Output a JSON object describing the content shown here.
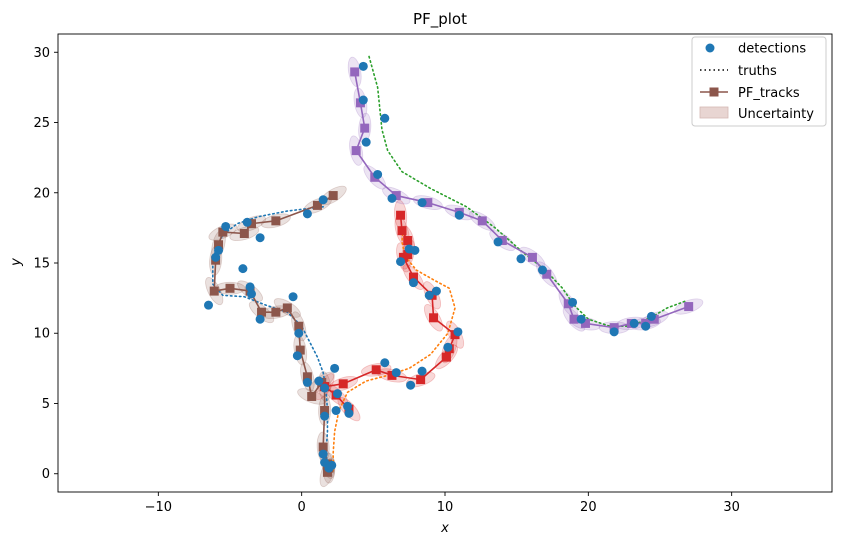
{
  "chart_data": {
    "type": "scatter",
    "title": "PF_plot",
    "xlabel": "x",
    "ylabel": "y",
    "xlim": [
      -17,
      37
    ],
    "ylim": [
      -1.3,
      31.3
    ],
    "xticks": [
      -10,
      0,
      10,
      20,
      30
    ],
    "yticks": [
      0,
      5,
      10,
      15,
      20,
      25,
      30
    ],
    "grid": false,
    "legend_position": "top-right",
    "legend": [
      "detections",
      "truths",
      "PF_tracks",
      "Uncertainty"
    ],
    "colors": {
      "detections": "#1f77b4",
      "legend_track": "#8c564b",
      "uncertainty_legend": "#e8d5d2",
      "track_brown": "#8c564b",
      "track_red": "#d62728",
      "track_purple": "#9467bd",
      "truth_blue": "#1f77b4",
      "truth_orange": "#ff7f0e",
      "truth_green": "#2ca02c"
    },
    "truths": [
      {
        "color": "truth_blue",
        "points": [
          [
            1.5,
            19.0
          ],
          [
            -1,
            18.7
          ],
          [
            -3,
            18.3
          ],
          [
            -4.5,
            17.8
          ],
          [
            -5.5,
            17.0
          ],
          [
            -6,
            16.0
          ],
          [
            -6.2,
            15.0
          ],
          [
            -6.2,
            13.5
          ],
          [
            -5.5,
            12.7
          ],
          [
            -4,
            12.6
          ],
          [
            -2.5,
            12.0
          ],
          [
            -1,
            11.5
          ],
          [
            0,
            10.5
          ],
          [
            0.6,
            9.3
          ],
          [
            1.1,
            8.3
          ],
          [
            1.5,
            7.2
          ],
          [
            1.7,
            6.0
          ],
          [
            1.8,
            4.5
          ],
          [
            1.8,
            3.0
          ],
          [
            1.7,
            1.5
          ],
          [
            1.8,
            0.5
          ],
          [
            1.9,
            0.0
          ]
        ]
      },
      {
        "color": "truth_orange",
        "points": [
          [
            2.2,
            0.2
          ],
          [
            2.2,
            1.5
          ],
          [
            2.3,
            3.0
          ],
          [
            2.6,
            4.5
          ],
          [
            3.2,
            5.8
          ],
          [
            4.5,
            6.6
          ],
          [
            6.0,
            7.0
          ],
          [
            7.5,
            7.5
          ],
          [
            9.0,
            8.5
          ],
          [
            10.2,
            10.0
          ],
          [
            10.7,
            11.8
          ],
          [
            10.3,
            13.2
          ],
          [
            9.2,
            13.8
          ],
          [
            8.0,
            14.5
          ],
          [
            7.2,
            15.5
          ],
          [
            7.0,
            16.5
          ],
          [
            7.1,
            17.5
          ]
        ]
      },
      {
        "color": "truth_green",
        "points": [
          [
            4.7,
            29.7
          ],
          [
            5.3,
            27.5
          ],
          [
            5.6,
            24.5
          ],
          [
            6.0,
            23.0
          ],
          [
            7.0,
            21.5
          ],
          [
            9.0,
            20.3
          ],
          [
            11.5,
            19.0
          ],
          [
            13.5,
            17.5
          ],
          [
            15.5,
            15.7
          ],
          [
            17.0,
            14.5
          ],
          [
            18.2,
            13.2
          ],
          [
            19.0,
            12.0
          ],
          [
            20.0,
            11.0
          ],
          [
            21.5,
            10.5
          ],
          [
            23,
            10.5
          ],
          [
            24.5,
            11.2
          ],
          [
            25.5,
            11.8
          ],
          [
            26.8,
            12.3
          ]
        ]
      }
    ],
    "tracks": [
      {
        "color": "track_brown",
        "points": [
          [
            1.8,
            0.1
          ],
          [
            1.9,
            0.4
          ],
          [
            1.8,
            0.7
          ],
          [
            1.5,
            1.9
          ],
          [
            1.6,
            4.5
          ],
          [
            1.6,
            6.2
          ],
          [
            1.4,
            6.5
          ],
          [
            0.7,
            5.5
          ],
          [
            0.4,
            6.9
          ],
          [
            -0.1,
            8.8
          ],
          [
            -0.2,
            10.5
          ],
          [
            -1,
            11.8
          ],
          [
            -1.8,
            11.5
          ],
          [
            -2.8,
            11.5
          ],
          [
            -3.6,
            13.0
          ],
          [
            -5,
            13.2
          ],
          [
            -6.1,
            13.0
          ],
          [
            -6,
            15.2
          ],
          [
            -5.8,
            16.3
          ],
          [
            -5.5,
            17.2
          ],
          [
            -4,
            17.1
          ],
          [
            -3.5,
            17.8
          ],
          [
            -1.8,
            18.0
          ],
          [
            1.1,
            19.1
          ],
          [
            2.2,
            19.8
          ]
        ]
      },
      {
        "color": "track_red",
        "points": [
          [
            3.3,
            4.6
          ],
          [
            2.4,
            5.6
          ],
          [
            1.6,
            6.2
          ],
          [
            2.9,
            6.4
          ],
          [
            5.2,
            7.4
          ],
          [
            6.3,
            7.0
          ],
          [
            8.3,
            6.7
          ],
          [
            10.1,
            8.3
          ],
          [
            10.3,
            8.9
          ],
          [
            10.7,
            9.9
          ],
          [
            9.2,
            11.1
          ],
          [
            9.1,
            12.7
          ],
          [
            7.8,
            14.0
          ],
          [
            7.1,
            15.4
          ],
          [
            7.4,
            15.6
          ],
          [
            7.4,
            16.6
          ],
          [
            7.0,
            17.3
          ],
          [
            6.9,
            18.4
          ]
        ]
      },
      {
        "color": "track_purple",
        "points": [
          [
            3.7,
            28.6
          ],
          [
            4.1,
            26.4
          ],
          [
            4.4,
            24.6
          ],
          [
            3.8,
            23.0
          ],
          [
            5.1,
            21.1
          ],
          [
            6.6,
            19.8
          ],
          [
            8.8,
            19.3
          ],
          [
            11.0,
            18.6
          ],
          [
            12.6,
            18.0
          ],
          [
            14.0,
            16.6
          ],
          [
            16.1,
            15.4
          ],
          [
            17.1,
            14.2
          ],
          [
            18.6,
            12.1
          ],
          [
            19.0,
            11.0
          ],
          [
            19.8,
            10.7
          ],
          [
            21.8,
            10.4
          ],
          [
            23.0,
            10.7
          ],
          [
            24.0,
            10.7
          ],
          [
            24.6,
            11.0
          ],
          [
            27.0,
            11.9
          ]
        ]
      }
    ],
    "detections": [
      [
        1.6,
        0.8
      ],
      [
        2.1,
        0.6
      ],
      [
        1.9,
        0.4
      ],
      [
        1.5,
        1.4
      ],
      [
        1.6,
        4.1
      ],
      [
        2.4,
        4.5
      ],
      [
        3.3,
        4.3
      ],
      [
        2.5,
        5.7
      ],
      [
        1.6,
        6.1
      ],
      [
        1.2,
        6.6
      ],
      [
        0.4,
        6.5
      ],
      [
        2.3,
        7.5
      ],
      [
        -0.3,
        8.4
      ],
      [
        -0.2,
        10.0
      ],
      [
        -0.6,
        12.6
      ],
      [
        -2.9,
        11.0
      ],
      [
        -3.5,
        12.8
      ],
      [
        -3.6,
        13.3
      ],
      [
        -4.1,
        14.6
      ],
      [
        -6.5,
        12.0
      ],
      [
        -6.0,
        15.4
      ],
      [
        -5.8,
        15.9
      ],
      [
        -5.3,
        17.6
      ],
      [
        -3.8,
        17.9
      ],
      [
        -2.9,
        16.8
      ],
      [
        0.4,
        18.5
      ],
      [
        1.5,
        19.5
      ],
      [
        3.2,
        4.8
      ],
      [
        5.8,
        7.9
      ],
      [
        7.6,
        6.3
      ],
      [
        6.6,
        7.2
      ],
      [
        8.4,
        7.3
      ],
      [
        10.2,
        9.0
      ],
      [
        10.9,
        10.1
      ],
      [
        9.4,
        13.0
      ],
      [
        7.8,
        13.6
      ],
      [
        6.9,
        15.1
      ],
      [
        7.5,
        16.0
      ],
      [
        7.9,
        15.9
      ],
      [
        8.9,
        12.7
      ],
      [
        4.3,
        29.0
      ],
      [
        4.3,
        26.6
      ],
      [
        5.8,
        25.3
      ],
      [
        4.5,
        23.6
      ],
      [
        5.3,
        21.3
      ],
      [
        6.3,
        19.6
      ],
      [
        8.4,
        19.3
      ],
      [
        11.0,
        18.4
      ],
      [
        13.7,
        16.5
      ],
      [
        15.3,
        15.3
      ],
      [
        16.8,
        14.5
      ],
      [
        18.9,
        12.2
      ],
      [
        19.5,
        11.0
      ],
      [
        21.8,
        10.1
      ],
      [
        23.2,
        10.7
      ],
      [
        24.0,
        10.5
      ],
      [
        24.4,
        11.2
      ]
    ]
  }
}
